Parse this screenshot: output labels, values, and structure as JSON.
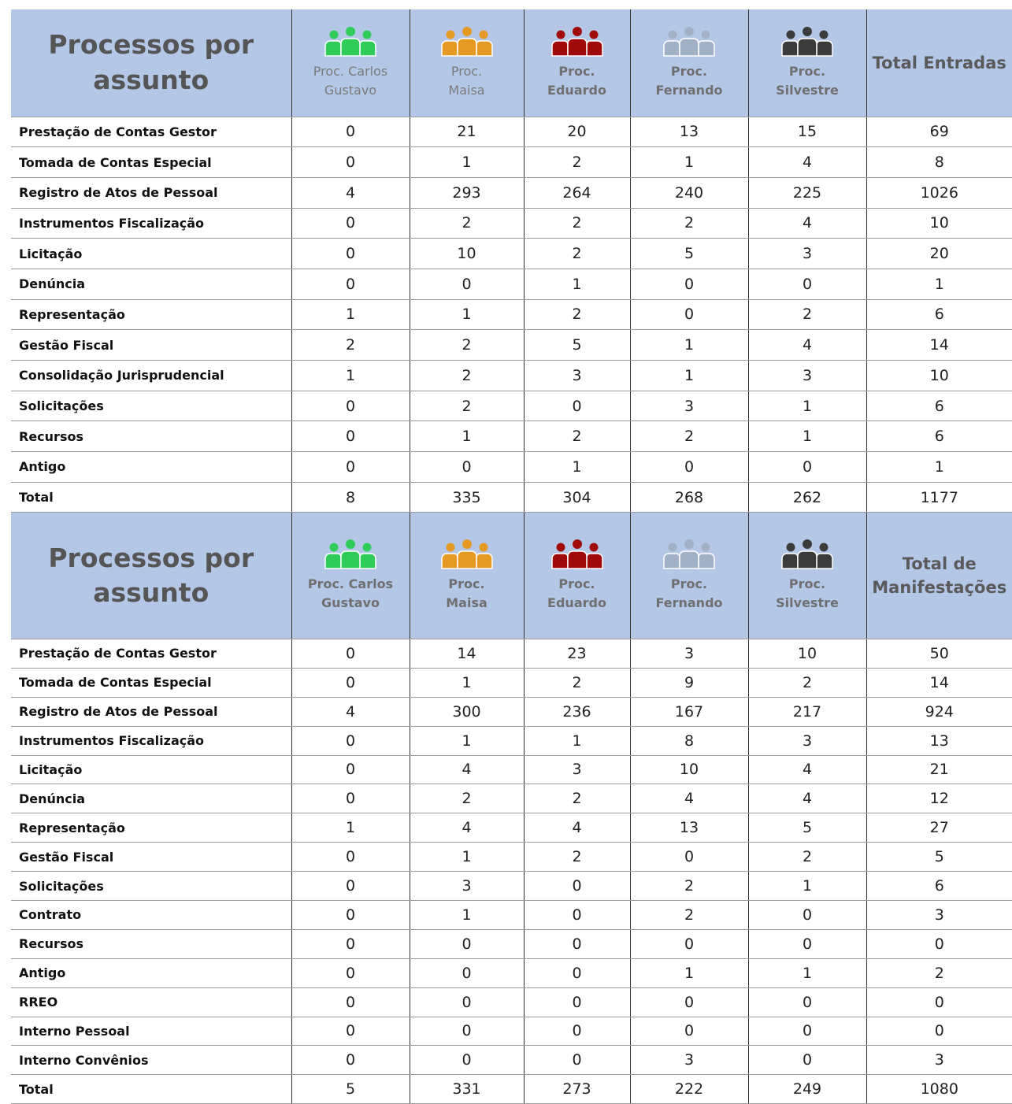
{
  "tables": [
    {
      "title": "Processos por\nassunto",
      "columns": [
        {
          "label": "Proc. Carlos\nGustavo",
          "color": "#2fcc5a"
        },
        {
          "label": "Proc.\nMaisa",
          "color": "#e59a23"
        },
        {
          "label": "Proc.\nEduardo",
          "color": "#a00a0a"
        },
        {
          "label": "Proc.\nFernando",
          "color": "#a3b1c6"
        },
        {
          "label": "Proc.\nSilvestre",
          "color": "#3b3b3b"
        }
      ],
      "total_label": "Total Entradas",
      "rows": [
        {
          "label": "Prestação de Contas Gestor",
          "values": [
            0,
            21,
            20,
            13,
            15,
            69
          ]
        },
        {
          "label": "Tomada de Contas Especial",
          "values": [
            0,
            1,
            2,
            1,
            4,
            8
          ]
        },
        {
          "label": "Registro de Atos de Pessoal",
          "values": [
            4,
            293,
            264,
            240,
            225,
            1026
          ]
        },
        {
          "label": "Instrumentos Fiscalização",
          "values": [
            0,
            2,
            2,
            2,
            4,
            10
          ]
        },
        {
          "label": "Licitação",
          "values": [
            0,
            10,
            2,
            5,
            3,
            20
          ]
        },
        {
          "label": "Denúncia",
          "values": [
            0,
            0,
            1,
            0,
            0,
            1
          ]
        },
        {
          "label": "Representação",
          "values": [
            1,
            1,
            2,
            0,
            2,
            6
          ]
        },
        {
          "label": "Gestão Fiscal",
          "values": [
            2,
            2,
            5,
            1,
            4,
            14
          ]
        },
        {
          "label": "Consolidação Jurisprudencial",
          "values": [
            1,
            2,
            3,
            1,
            3,
            10
          ]
        },
        {
          "label": "Solicitações",
          "values": [
            0,
            2,
            0,
            3,
            1,
            6
          ]
        },
        {
          "label": "Recursos",
          "values": [
            0,
            1,
            2,
            2,
            1,
            6
          ]
        },
        {
          "label": "Antigo",
          "values": [
            0,
            0,
            1,
            0,
            0,
            1
          ]
        },
        {
          "label": "Total",
          "values": [
            8,
            335,
            304,
            268,
            262,
            1177
          ]
        }
      ]
    },
    {
      "title": "Processos por\nassunto",
      "columns": [
        {
          "label": "Proc. Carlos\nGustavo",
          "color": "#2fcc5a"
        },
        {
          "label": "Proc.\nMaisa",
          "color": "#e59a23"
        },
        {
          "label": "Proc.\nEduardo",
          "color": "#a00a0a"
        },
        {
          "label": "Proc.\nFernando",
          "color": "#a3b1c6"
        },
        {
          "label": "Proc.\nSilvestre",
          "color": "#3b3b3b"
        }
      ],
      "total_label": "Total de\nManifestações",
      "rows": [
        {
          "label": "Prestação de Contas Gestor",
          "values": [
            0,
            14,
            23,
            3,
            10,
            50
          ]
        },
        {
          "label": "Tomada de Contas Especial",
          "values": [
            0,
            1,
            2,
            9,
            2,
            14
          ]
        },
        {
          "label": "Registro de Atos de Pessoal",
          "values": [
            4,
            300,
            236,
            167,
            217,
            924
          ]
        },
        {
          "label": "Instrumentos Fiscalização",
          "values": [
            0,
            1,
            1,
            8,
            3,
            13
          ]
        },
        {
          "label": "Licitação",
          "values": [
            0,
            4,
            3,
            10,
            4,
            21
          ]
        },
        {
          "label": "Denúncia",
          "values": [
            0,
            2,
            2,
            4,
            4,
            12
          ]
        },
        {
          "label": "Representação",
          "values": [
            1,
            4,
            4,
            13,
            5,
            27
          ]
        },
        {
          "label": "Gestão Fiscal",
          "values": [
            0,
            1,
            2,
            0,
            2,
            5
          ]
        },
        {
          "label": "Solicitações",
          "values": [
            0,
            3,
            0,
            2,
            1,
            6
          ]
        },
        {
          "label": "Contrato",
          "values": [
            0,
            1,
            0,
            2,
            0,
            3
          ]
        },
        {
          "label": "Recursos",
          "values": [
            0,
            0,
            0,
            0,
            0,
            0
          ]
        },
        {
          "label": "Antigo",
          "values": [
            0,
            0,
            0,
            1,
            1,
            2
          ]
        },
        {
          "label": "RREO",
          "values": [
            0,
            0,
            0,
            0,
            0,
            0
          ]
        },
        {
          "label": "Interno Pessoal",
          "values": [
            0,
            0,
            0,
            0,
            0,
            0
          ]
        },
        {
          "label": "Interno Convênios",
          "values": [
            0,
            0,
            0,
            3,
            0,
            3
          ]
        },
        {
          "label": "Total",
          "values": [
            5,
            331,
            273,
            222,
            249,
            1080
          ]
        }
      ]
    }
  ]
}
